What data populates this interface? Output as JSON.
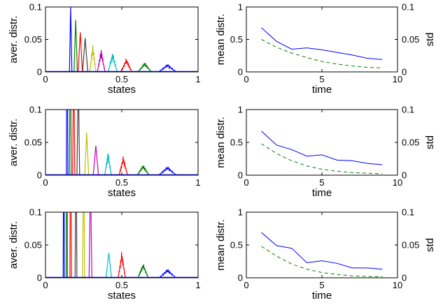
{
  "colors": {
    "blue": "#0000ff",
    "green": "#008000",
    "red": "#ff0000",
    "cyan": "#00bfbf",
    "magenta": "#bf00bf",
    "olive": "#bfbf00",
    "dark": "#404040"
  },
  "chart_data": [
    {
      "type": "line",
      "panel": "left",
      "row": 1,
      "xlabel": "states",
      "ylabel": "aver. distr.",
      "xlim": [
        0,
        1
      ],
      "ylim": [
        0,
        0.1
      ],
      "xticks": [
        0,
        0.5,
        1
      ],
      "xtick_labels": [
        "0",
        "0.5",
        "1"
      ],
      "yticks": [
        0,
        0.05,
        0.1
      ],
      "ytick_labels": [
        "0",
        "0.05",
        "0.1"
      ],
      "peaks": [
        {
          "color": "blue",
          "center": 0.165,
          "width": 0.008,
          "height": 0.1
        },
        {
          "color": "green",
          "center": 0.198,
          "width": 0.011,
          "height": 0.08
        },
        {
          "color": "red",
          "center": 0.228,
          "width": 0.014,
          "height": 0.061
        },
        {
          "color": "dark",
          "center": 0.26,
          "width": 0.017,
          "height": 0.052
        },
        {
          "color": "olive",
          "center": 0.31,
          "width": 0.021,
          "height": 0.035
        },
        {
          "color": "magenta",
          "center": 0.365,
          "width": 0.025,
          "height": 0.03
        },
        {
          "color": "cyan",
          "center": 0.44,
          "width": 0.03,
          "height": 0.025
        },
        {
          "color": "red",
          "center": 0.53,
          "width": 0.036,
          "height": 0.017
        },
        {
          "color": "green",
          "center": 0.65,
          "width": 0.045,
          "height": 0.012
        },
        {
          "color": "blue",
          "center": 0.8,
          "width": 0.058,
          "height": 0.01
        }
      ]
    },
    {
      "type": "line",
      "panel": "right",
      "row": 1,
      "xlabel": "time",
      "ylabel": "mean distr.",
      "ylabel2": "std",
      "xlim": [
        0,
        10
      ],
      "ylim": [
        0,
        1
      ],
      "ylim2": [
        0,
        0.1
      ],
      "xticks": [
        0,
        5,
        10
      ],
      "xtick_labels": [
        "0",
        "5",
        "10"
      ],
      "yticks": [
        0,
        0.5,
        1
      ],
      "ytick_labels": [
        "0",
        "0.5",
        "1"
      ],
      "yticks2": [
        0,
        0.05,
        0.1
      ],
      "ytick_labels2": [
        "0",
        "0.05",
        "0.1"
      ],
      "x": [
        1,
        2,
        3,
        4,
        5,
        6,
        7,
        8,
        9
      ],
      "series": [
        {
          "axis": "left",
          "color": "blue",
          "style": "solid",
          "values": [
            0.68,
            0.47,
            0.35,
            0.37,
            0.34,
            0.3,
            0.26,
            0.21,
            0.19
          ]
        },
        {
          "axis": "right",
          "color": "green",
          "style": "dashed",
          "values": [
            0.05,
            0.038,
            0.029,
            0.022,
            0.016,
            0.012,
            0.009,
            0.007,
            0.006
          ]
        }
      ]
    },
    {
      "type": "line",
      "panel": "left",
      "row": 2,
      "xlabel": "states",
      "ylabel": "aver. distr.",
      "xlim": [
        0,
        1
      ],
      "ylim": [
        0,
        0.1
      ],
      "xticks": [
        0,
        0.5,
        1
      ],
      "xtick_labels": [
        "0",
        "0.5",
        "1"
      ],
      "yticks": [
        0,
        0.05,
        0.1
      ],
      "ytick_labels": [
        "0",
        "0.05",
        "0.1"
      ],
      "peaks": [
        {
          "color": "blue",
          "center": 0.142,
          "width": 0.005,
          "height": 0.3
        },
        {
          "color": "green",
          "center": 0.163,
          "width": 0.006,
          "height": 0.25
        },
        {
          "color": "red",
          "center": 0.185,
          "width": 0.007,
          "height": 0.2
        },
        {
          "color": "dark",
          "center": 0.215,
          "width": 0.009,
          "height": 0.15
        },
        {
          "color": "olive",
          "center": 0.27,
          "width": 0.013,
          "height": 0.065
        },
        {
          "color": "magenta",
          "center": 0.33,
          "width": 0.017,
          "height": 0.045
        },
        {
          "color": "cyan",
          "center": 0.41,
          "width": 0.022,
          "height": 0.03
        },
        {
          "color": "red",
          "center": 0.51,
          "width": 0.028,
          "height": 0.024
        },
        {
          "color": "green",
          "center": 0.64,
          "width": 0.04,
          "height": 0.013
        },
        {
          "color": "blue",
          "center": 0.8,
          "width": 0.058,
          "height": 0.011
        }
      ]
    },
    {
      "type": "line",
      "panel": "right",
      "row": 2,
      "xlabel": "time",
      "ylabel": "mean distr.",
      "ylabel2": "std",
      "xlim": [
        0,
        10
      ],
      "ylim": [
        0,
        1
      ],
      "ylim2": [
        0,
        0.1
      ],
      "xticks": [
        0,
        5,
        10
      ],
      "xtick_labels": [
        "0",
        "5",
        "10"
      ],
      "yticks": [
        0,
        0.5,
        1
      ],
      "ytick_labels": [
        "0",
        "0.5",
        "1"
      ],
      "yticks2": [
        0,
        0.05,
        0.1
      ],
      "ytick_labels2": [
        "0",
        "0.05",
        "0.1"
      ],
      "x": [
        1,
        2,
        3,
        4,
        5,
        6,
        7,
        8,
        9
      ],
      "series": [
        {
          "axis": "left",
          "color": "blue",
          "style": "solid",
          "values": [
            0.67,
            0.46,
            0.39,
            0.29,
            0.31,
            0.23,
            0.22,
            0.18,
            0.16
          ]
        },
        {
          "axis": "right",
          "color": "green",
          "style": "dashed",
          "values": [
            0.048,
            0.033,
            0.022,
            0.014,
            0.009,
            0.006,
            0.004,
            0.003,
            0.002
          ]
        }
      ]
    },
    {
      "type": "line",
      "panel": "left",
      "row": 3,
      "xlabel": "states",
      "ylabel": "aver. distr.",
      "xlim": [
        0,
        1
      ],
      "ylim": [
        0,
        0.1
      ],
      "xticks": [
        0,
        0.5,
        1
      ],
      "xtick_labels": [
        "0",
        "0.5",
        "1"
      ],
      "yticks": [
        0,
        0.05,
        0.1
      ],
      "ytick_labels": [
        "0",
        "0.05",
        "0.1"
      ],
      "peaks": [
        {
          "color": "blue",
          "center": 0.12,
          "width": 0.004,
          "height": 0.3
        },
        {
          "color": "green",
          "center": 0.14,
          "width": 0.004,
          "height": 0.3
        },
        {
          "color": "red",
          "center": 0.165,
          "width": 0.005,
          "height": 0.3
        },
        {
          "color": "dark",
          "center": 0.2,
          "width": 0.006,
          "height": 0.25
        },
        {
          "color": "olive",
          "center": 0.25,
          "width": 0.007,
          "height": 0.2
        },
        {
          "color": "magenta",
          "center": 0.295,
          "width": 0.009,
          "height": 0.15
        },
        {
          "color": "cyan",
          "center": 0.415,
          "width": 0.018,
          "height": 0.038
        },
        {
          "color": "red",
          "center": 0.5,
          "width": 0.024,
          "height": 0.033
        },
        {
          "color": "green",
          "center": 0.64,
          "width": 0.035,
          "height": 0.018
        },
        {
          "color": "blue",
          "center": 0.8,
          "width": 0.055,
          "height": 0.011
        }
      ]
    },
    {
      "type": "line",
      "panel": "right",
      "row": 3,
      "xlabel": "time",
      "ylabel": "mean distr.",
      "ylabel2": "std",
      "xlim": [
        0,
        10
      ],
      "ylim": [
        0,
        1
      ],
      "ylim2": [
        0,
        0.1
      ],
      "xticks": [
        0,
        5,
        10
      ],
      "xtick_labels": [
        "0",
        "5",
        "10"
      ],
      "yticks": [
        0,
        0.5,
        1
      ],
      "ytick_labels": [
        "0",
        "0.5",
        "1"
      ],
      "yticks2": [
        0,
        0.05,
        0.1
      ],
      "ytick_labels2": [
        "0",
        "0.05",
        "0.1"
      ],
      "x": [
        1,
        2,
        3,
        4,
        5,
        6,
        7,
        8,
        9
      ],
      "series": [
        {
          "axis": "left",
          "color": "blue",
          "style": "solid",
          "values": [
            0.69,
            0.49,
            0.45,
            0.23,
            0.26,
            0.22,
            0.15,
            0.15,
            0.13
          ]
        },
        {
          "axis": "right",
          "color": "green",
          "style": "dashed",
          "values": [
            0.048,
            0.033,
            0.021,
            0.013,
            0.008,
            0.005,
            0.003,
            0.002,
            0.0015
          ]
        }
      ]
    }
  ]
}
